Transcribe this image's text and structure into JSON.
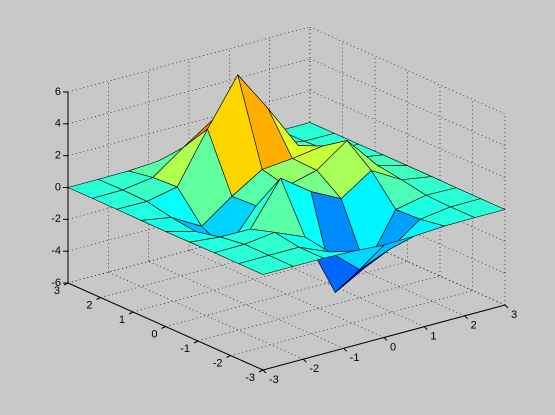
{
  "chart_data": {
    "type": "surface",
    "x": [
      -3,
      -2.25,
      -1.5,
      -0.75,
      0,
      0.75,
      1.5,
      2.25,
      3
    ],
    "y": [
      -3,
      -2.25,
      -1.5,
      -0.75,
      0,
      0.75,
      1.5,
      2.25,
      3
    ],
    "z": [
      [
        0,
        0,
        0,
        -0.06,
        -0.19,
        -0.14,
        -0.02,
        0,
        0
      ],
      [
        0,
        0.01,
        0.01,
        -0.8,
        -2.42,
        -1.64,
        -0.28,
        -0.01,
        0
      ],
      [
        0,
        0.02,
        0.26,
        -0.54,
        -4.54,
        -3.46,
        -0.35,
        0.04,
        0
      ],
      [
        -0.02,
        -0.2,
        -0.22,
        2.47,
        1.12,
        0.16,
        1.42,
        0.33,
        0.02
      ],
      [
        -0.03,
        -0.55,
        -2.22,
        0.05,
        0.78,
        1.26,
        2.62,
        0.56,
        0.02
      ],
      [
        -0.02,
        -0.34,
        -1.41,
        -0.04,
        1.14,
        1.32,
        1.59,
        0.32,
        0.02
      ],
      [
        0,
        -0.02,
        0.38,
        3.5,
        6.4,
        3.78,
        0.94,
        0.1,
        0
      ],
      [
        0,
        0.02,
        0.29,
        1.66,
        2.92,
        1.67,
        0.33,
        0.02,
        0
      ],
      [
        0,
        0,
        0.02,
        0.14,
        0.24,
        0.14,
        0.02,
        0,
        0
      ]
    ],
    "xlim": [
      -3,
      3
    ],
    "ylim": [
      -3,
      3
    ],
    "zlim": [
      -6,
      6
    ],
    "xticks": [
      -3,
      -2,
      -1,
      0,
      1,
      2,
      3
    ],
    "yticks": [
      -3,
      -2,
      -1,
      0,
      1,
      2,
      3
    ],
    "zticks": [
      -6,
      -4,
      -2,
      0,
      2,
      4,
      6
    ],
    "grid": true,
    "colormap": "jet",
    "edgecolor": "#000000"
  }
}
